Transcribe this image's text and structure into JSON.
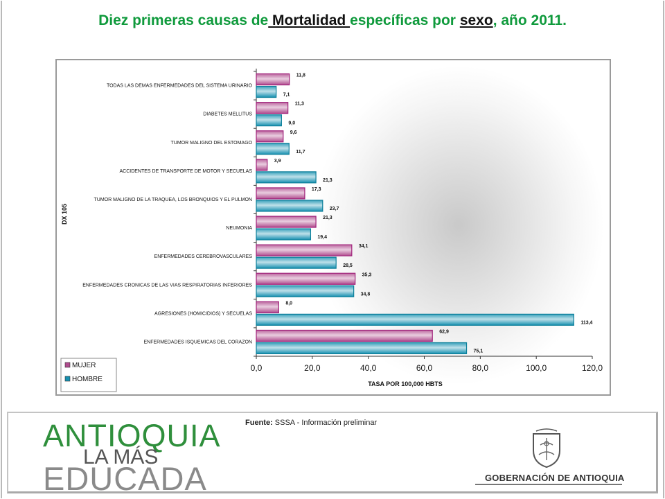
{
  "title": {
    "part1": "Diez primeras causas de",
    "underlined1": " Mortalidad ",
    "part2": "específicas por ",
    "underlined2": "sexo",
    "part3": ", año 2011."
  },
  "chart_data": {
    "type": "bar",
    "orientation": "horizontal",
    "categories": [
      "TODAS LAS DEMAS ENFERMEDADES DEL SISTEMA URINARIO",
      "DIABETES MELLITUS",
      "TUMOR MALIGNO DEL ESTOMAGO",
      "ACCIDENTES DE TRANSPORTE DE MOTOR Y SECUELAS",
      "TUMOR MALIGNO DE LA TRAQUEA, LOS BRONQUIOS Y EL PULMON",
      "NEUMONIA",
      "ENFERMEDADES CEREBROVASCULARES",
      "ENFERMEDADES CRONICAS DE LAS VIAS RESPIRATORIAS INFERIORES",
      "AGRESIONES (HOMICIDIOS) Y SECUELAS",
      "ENFERMEDADES ISQUEMICAS DEL CORAZON"
    ],
    "series": [
      {
        "name": "MUJER",
        "color": "#b04c8e",
        "values": [
          11.8,
          11.3,
          9.6,
          3.9,
          17.3,
          21.3,
          34.1,
          35.3,
          8.0,
          62.9
        ],
        "labels": [
          "11,8",
          "11,3",
          "9,6",
          "3,9",
          "17,3",
          "21,3",
          "34,1",
          "35,3",
          "8,0",
          "62,9"
        ]
      },
      {
        "name": "HOMBRE",
        "color": "#1690b0",
        "values": [
          7.1,
          9.0,
          11.7,
          21.3,
          23.7,
          19.4,
          28.5,
          34.8,
          113.4,
          75.1
        ],
        "labels": [
          "7,1",
          "9,0",
          "11,7",
          "21,3",
          "23,7",
          "19,4",
          "28,5",
          "34,8",
          "113,4",
          "75,1"
        ]
      }
    ],
    "xlabel": "TASA POR 100,000 HBTS",
    "ylabel": "DX 105",
    "xlim": [
      0,
      120
    ],
    "xticks": [
      "0,0",
      "20,0",
      "40,0",
      "60,0",
      "80,0",
      "100,0",
      "120,0"
    ],
    "legend_position": "bottom-left",
    "grid": false
  },
  "footer": {
    "source_label": "Fuente:",
    "source_text": "SSSA - Información preliminar"
  },
  "logo_left": {
    "line1": "ANTIOQUIA",
    "line2": "LA MÁS",
    "line3": "EDUCADA",
    "color_green": "#2f8f3c"
  },
  "logo_right": {
    "text": "GOBERNACIÓN DE ANTIOQUIA"
  }
}
